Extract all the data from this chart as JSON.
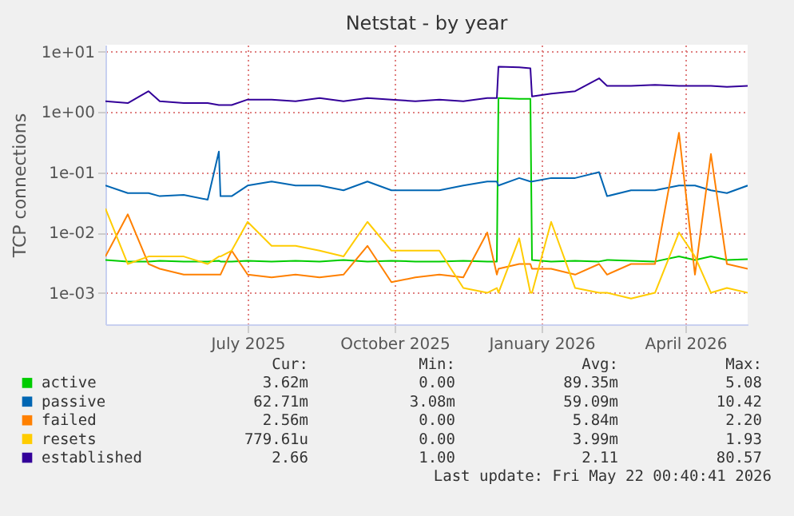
{
  "chart_data": {
    "type": "line",
    "title": "Netstat - by year",
    "ylabel": "TCP connections",
    "x": [
      "2025-04-03",
      "2025-04-17",
      "2025-04-30",
      "2025-05-07",
      "2025-05-22",
      "2025-06-06",
      "2025-06-13",
      "2025-06-14",
      "2025-06-21",
      "2025-07-01",
      "2025-07-16",
      "2025-07-31",
      "2025-08-15",
      "2025-08-30",
      "2025-09-14",
      "2025-09-29",
      "2025-10-14",
      "2025-10-29",
      "2025-11-13",
      "2025-11-28",
      "2025-12-04",
      "2025-12-05",
      "2025-12-18",
      "2025-12-25",
      "2025-12-26",
      "2026-01-07",
      "2026-01-22",
      "2026-02-06",
      "2026-02-11",
      "2026-02-26",
      "2026-03-13",
      "2026-03-28",
      "2026-04-07",
      "2026-04-17",
      "2026-04-27",
      "2026-05-10"
    ],
    "series": [
      {
        "name": "active",
        "color": "#00cc00",
        "values": [
          0.0035,
          0.0033,
          0.0033,
          0.0034,
          0.0033,
          0.0033,
          0.0034,
          0.0033,
          0.0033,
          0.0034,
          0.0033,
          0.0034,
          0.0033,
          0.0035,
          0.0033,
          0.0034,
          0.0033,
          0.0033,
          0.0034,
          0.0033,
          0.0033,
          1.7,
          1.65,
          1.65,
          0.0035,
          0.0033,
          0.0034,
          0.0033,
          0.0035,
          0.0034,
          0.0033,
          0.004,
          0.0035,
          0.004,
          0.0035,
          0.0036
        ]
      },
      {
        "name": "passive",
        "color": "#0066b3",
        "values": [
          0.06,
          0.045,
          0.045,
          0.04,
          0.042,
          0.035,
          0.22,
          0.04,
          0.04,
          0.06,
          0.07,
          0.06,
          0.06,
          0.05,
          0.07,
          0.05,
          0.05,
          0.05,
          0.06,
          0.07,
          0.07,
          0.06,
          0.08,
          0.07,
          0.07,
          0.08,
          0.08,
          0.1,
          0.04,
          0.05,
          0.05,
          0.06,
          0.06,
          0.05,
          0.045,
          0.06
        ]
      },
      {
        "name": "failed",
        "color": "#ff8000",
        "values": [
          0.004,
          0.02,
          0.003,
          0.0025,
          0.002,
          0.002,
          0.002,
          0.002,
          0.005,
          0.002,
          0.0018,
          0.002,
          0.0018,
          0.002,
          0.006,
          0.0015,
          0.0018,
          0.002,
          0.0018,
          0.01,
          0.002,
          0.0025,
          0.003,
          0.003,
          0.0025,
          0.0025,
          0.002,
          0.003,
          0.002,
          0.003,
          0.003,
          0.45,
          0.002,
          0.2,
          0.003,
          0.0025
        ]
      },
      {
        "name": "resets",
        "color": "#ffcc00",
        "values": [
          0.025,
          0.003,
          0.004,
          0.004,
          0.004,
          0.003,
          0.004,
          0.004,
          0.005,
          0.015,
          0.006,
          0.006,
          0.005,
          0.004,
          0.015,
          0.005,
          0.005,
          0.005,
          0.0012,
          0.001,
          0.0012,
          0.001,
          0.008,
          0.001,
          0.001,
          0.015,
          0.0012,
          0.001,
          0.001,
          0.0008,
          0.001,
          0.01,
          0.004,
          0.001,
          0.0012,
          0.001
        ]
      },
      {
        "name": "established",
        "color": "#330099",
        "values": [
          1.5,
          1.4,
          2.2,
          1.5,
          1.4,
          1.4,
          1.3,
          1.3,
          1.3,
          1.6,
          1.6,
          1.5,
          1.7,
          1.5,
          1.7,
          1.6,
          1.5,
          1.6,
          1.5,
          1.7,
          1.7,
          5.6,
          5.5,
          5.3,
          1.8,
          2.0,
          2.2,
          3.6,
          2.7,
          2.7,
          2.8,
          2.7,
          2.7,
          2.7,
          2.6,
          2.7
        ]
      }
    ],
    "log": true,
    "ylim": [
      0.0003,
      13
    ],
    "yticks": [
      {
        "value": 0.001,
        "label": "1e-03"
      },
      {
        "value": 0.01,
        "label": "1e-02"
      },
      {
        "value": 0.1,
        "label": "1e-01"
      },
      {
        "value": 1,
        "label": "1e+00"
      },
      {
        "value": 10,
        "label": "1e+01"
      }
    ],
    "xlim": [
      "2025-04-03",
      "2026-05-10"
    ],
    "xticks": [
      {
        "value": "2025-07-01",
        "label": "July 2025"
      },
      {
        "value": "2025-10-01",
        "label": "October 2025"
      },
      {
        "value": "2026-01-01",
        "label": "January 2026"
      },
      {
        "value": "2026-04-01",
        "label": "April 2026"
      }
    ],
    "grid": true,
    "legend": "bottom",
    "annotations": [
      "Cur:",
      "Min:",
      "Avg:",
      "Max:",
      "3.62m",
      "0.00",
      "89.35m",
      "5.08",
      "62.71m",
      "3.08m",
      "59.09m",
      "10.42",
      "2.56m",
      "0.00",
      "5.84m",
      "2.20",
      "779.61u",
      "0.00",
      "3.99m",
      "1.93",
      "2.66",
      "1.00",
      "2.11",
      "80.57",
      "Last update: Fri May 22 00:40:41 2026"
    ]
  }
}
